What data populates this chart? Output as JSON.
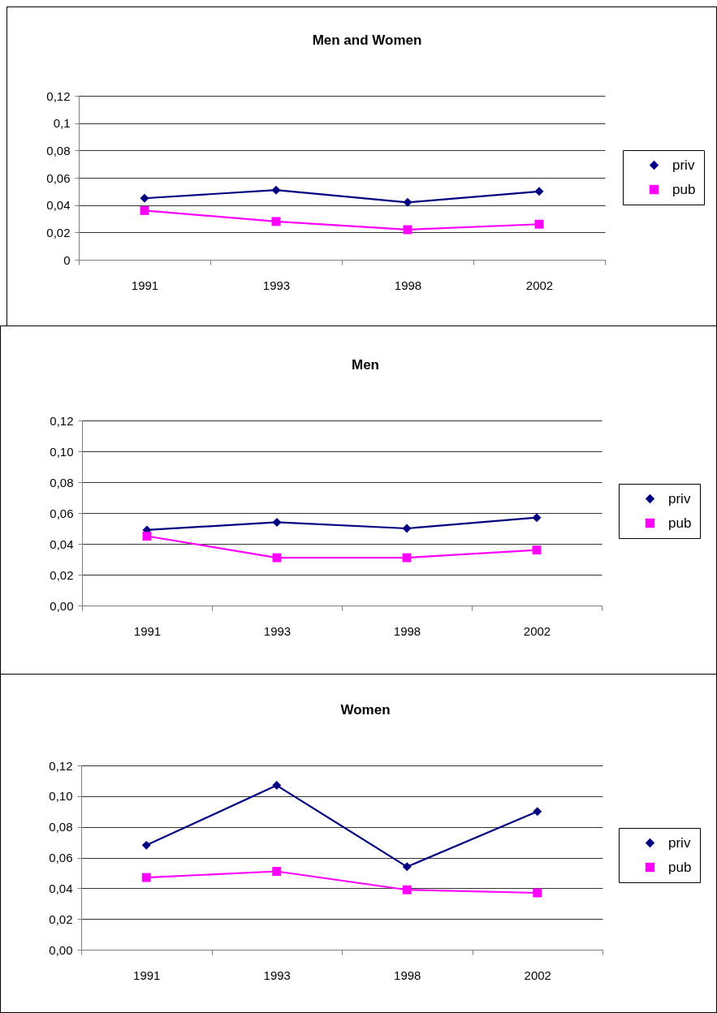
{
  "chart_data": [
    {
      "type": "line",
      "title": "Men and Women",
      "categories": [
        "1991",
        "1993",
        "1998",
        "2002"
      ],
      "series": [
        {
          "name": "priv",
          "color": "#000080",
          "marker": "diamond",
          "values": [
            0.045,
            0.051,
            0.042,
            0.05
          ]
        },
        {
          "name": "pub",
          "color": "#ff00ff",
          "marker": "square",
          "values": [
            0.036,
            0.028,
            0.022,
            0.026
          ]
        }
      ],
      "ylim": [
        0,
        0.12
      ],
      "yticks": [
        0,
        {
          "value": 0.02,
          "label": "0,02"
        },
        {
          "value": 0.04,
          "label": "0,04"
        },
        {
          "value": 0.06,
          "label": "0,06"
        },
        {
          "value": 0.08,
          "label": "0,08"
        },
        {
          "value": 0.1,
          "label": "0,1"
        },
        {
          "value": 0.12,
          "label": "0,12"
        }
      ],
      "grid": "y",
      "legend": "right"
    },
    {
      "type": "line",
      "title": "Men",
      "categories": [
        "1991",
        "1993",
        "1998",
        "2002"
      ],
      "series": [
        {
          "name": "priv",
          "color": "#000080",
          "marker": "diamond",
          "values": [
            0.049,
            0.054,
            0.05,
            0.057
          ]
        },
        {
          "name": "pub",
          "color": "#ff00ff",
          "marker": "square",
          "values": [
            0.045,
            0.031,
            0.031,
            0.036
          ]
        }
      ],
      "ylim": [
        0,
        0.12
      ],
      "yticks": [
        {
          "value": 0,
          "label": "0,00"
        },
        {
          "value": 0.02,
          "label": "0,02"
        },
        {
          "value": 0.04,
          "label": "0,04"
        },
        {
          "value": 0.06,
          "label": "0,06"
        },
        {
          "value": 0.08,
          "label": "0,08"
        },
        {
          "value": 0.1,
          "label": "0,10"
        },
        {
          "value": 0.12,
          "label": "0,12"
        }
      ],
      "grid": "y",
      "legend": "right"
    },
    {
      "type": "line",
      "title": "Women",
      "categories": [
        "1991",
        "1993",
        "1998",
        "2002"
      ],
      "series": [
        {
          "name": "priv",
          "color": "#000080",
          "marker": "diamond",
          "values": [
            0.068,
            0.107,
            0.054,
            0.09
          ]
        },
        {
          "name": "pub",
          "color": "#ff00ff",
          "marker": "square",
          "values": [
            0.047,
            0.051,
            0.039,
            0.037
          ]
        }
      ],
      "ylim": [
        0,
        0.12
      ],
      "yticks": [
        {
          "value": 0,
          "label": "0,00"
        },
        {
          "value": 0.02,
          "label": "0,02"
        },
        {
          "value": 0.04,
          "label": "0,04"
        },
        {
          "value": 0.06,
          "label": "0,06"
        },
        {
          "value": 0.08,
          "label": "0,08"
        },
        {
          "value": 0.1,
          "label": "0,10"
        },
        {
          "value": 0.12,
          "label": "0,12"
        }
      ],
      "grid": "y",
      "legend": "right"
    }
  ]
}
